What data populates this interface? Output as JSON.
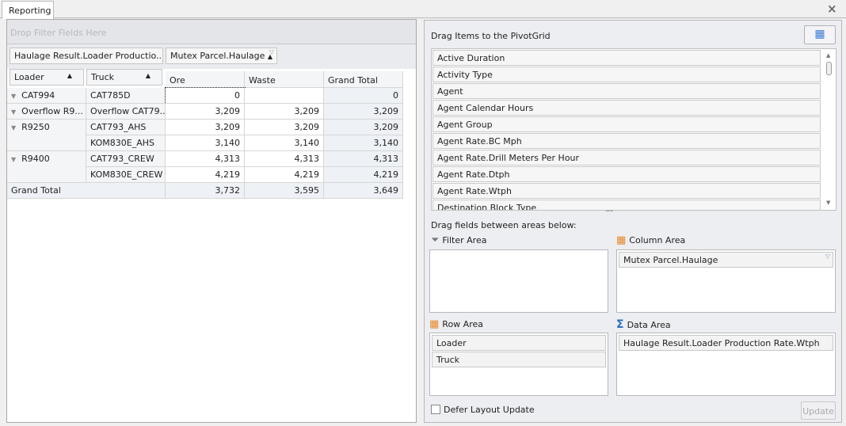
{
  "window": {
    "tab": "Reporting",
    "close_icon": "close-icon"
  },
  "pivot": {
    "filter_placeholder": "Drop Filter Fields Here",
    "data_field": "Haulage Result.Loader Productio...",
    "column_field": "Mutex Parcel.Haulage",
    "row_fields": [
      "Loader",
      "Truck"
    ],
    "columns": [
      "Ore",
      "Waste",
      "Grand Total"
    ],
    "rows": [
      {
        "loader": "CAT994",
        "truck": "CAT785D",
        "values": [
          "0",
          "",
          "0"
        ]
      },
      {
        "loader": "Overflow R9...",
        "truck": "Overflow CAT79...",
        "values": [
          "3,209",
          "3,209",
          "3,209"
        ]
      },
      {
        "loader": "R9250",
        "truck": "CAT793_AHS",
        "values": [
          "3,209",
          "3,209",
          "3,209"
        ]
      },
      {
        "loader": "",
        "truck": "KOM830E_AHS",
        "values": [
          "3,140",
          "3,140",
          "3,140"
        ]
      },
      {
        "loader": "R9400",
        "truck": "CAT793_CREW",
        "values": [
          "4,313",
          "4,313",
          "4,313"
        ]
      },
      {
        "loader": "",
        "truck": "KOM830E_CREW",
        "values": [
          "4,219",
          "4,219",
          "4,219"
        ]
      }
    ],
    "grand_total": {
      "label": "Grand Total",
      "values": [
        "3,732",
        "3,595",
        "3,649"
      ]
    }
  },
  "field_list": {
    "title": "Drag Items to the PivotGrid",
    "items": [
      "Active Duration",
      "Activity Type",
      "Agent",
      "Agent Calendar Hours",
      "Agent Group",
      "Agent Rate.BC Mph",
      "Agent Rate.Drill Meters Per Hour",
      "Agent Rate.Dtph",
      "Agent Rate.Wtph",
      "Destination Block Type"
    ],
    "areas_caption": "Drag fields between areas below:",
    "filter_area": {
      "label": "Filter Area",
      "items": []
    },
    "column_area": {
      "label": "Column Area",
      "items": [
        "Mutex Parcel.Haulage"
      ]
    },
    "row_area": {
      "label": "Row Area",
      "items": [
        "Loader",
        "Truck"
      ]
    },
    "data_area": {
      "label": "Data Area",
      "items": [
        "Haulage Result.Loader Production Rate.Wtph"
      ]
    },
    "defer_label": "Defer Layout Update",
    "defer_checked": false,
    "update_label": "Update"
  },
  "colors": {
    "accent": "#3a7bd5",
    "grand_total_bg": "#eef1f6",
    "header_bg": "#e4e5e9"
  }
}
